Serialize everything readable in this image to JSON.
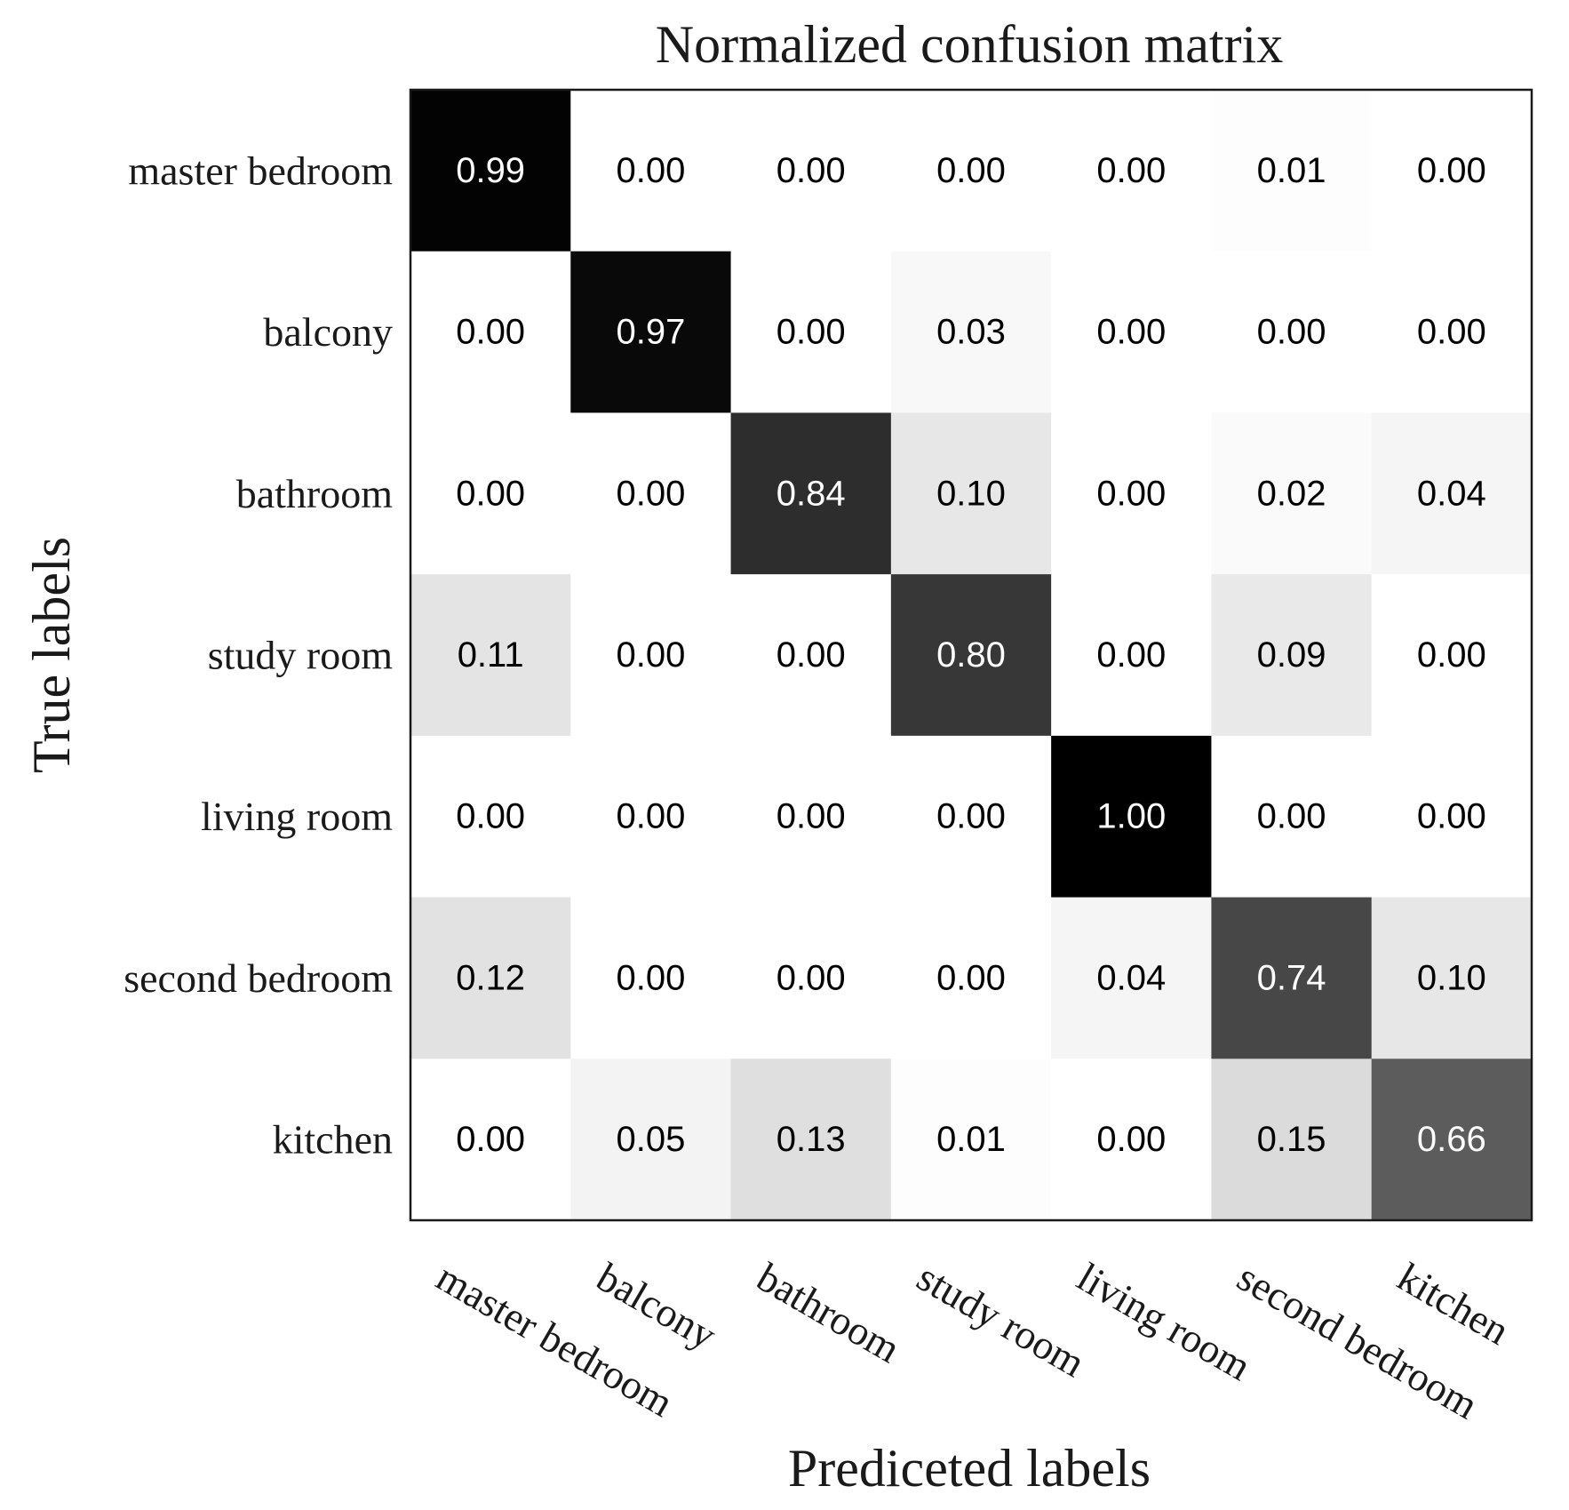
{
  "chart_data": {
    "type": "heatmap",
    "title": "Normalized confusion matrix",
    "xlabel": "Prediceted labels",
    "ylabel": "True labels",
    "row_labels": [
      "master bedroom",
      "balcony",
      "bathroom",
      "study room",
      "living room",
      "second bedroom",
      "kitchen"
    ],
    "col_labels": [
      "master bedroom",
      "balcony",
      "bathroom",
      "study room",
      "living room",
      "second bedroom",
      "kitchen"
    ],
    "values": [
      [
        0.99,
        0.0,
        0.0,
        0.0,
        0.0,
        0.01,
        0.0
      ],
      [
        0.0,
        0.97,
        0.0,
        0.03,
        0.0,
        0.0,
        0.0
      ],
      [
        0.0,
        0.0,
        0.84,
        0.1,
        0.0,
        0.02,
        0.04
      ],
      [
        0.11,
        0.0,
        0.0,
        0.8,
        0.0,
        0.09,
        0.0
      ],
      [
        0.0,
        0.0,
        0.0,
        0.0,
        1.0,
        0.0,
        0.0
      ],
      [
        0.12,
        0.0,
        0.0,
        0.0,
        0.04,
        0.74,
        0.1
      ],
      [
        0.0,
        0.05,
        0.13,
        0.01,
        0.0,
        0.15,
        0.66
      ]
    ],
    "value_format": "0.00",
    "colormap": "Greys",
    "vmin": 0,
    "vmax": 1,
    "text_dark_color": "#000000",
    "text_light_color": "#ffffff",
    "grid": false
  }
}
